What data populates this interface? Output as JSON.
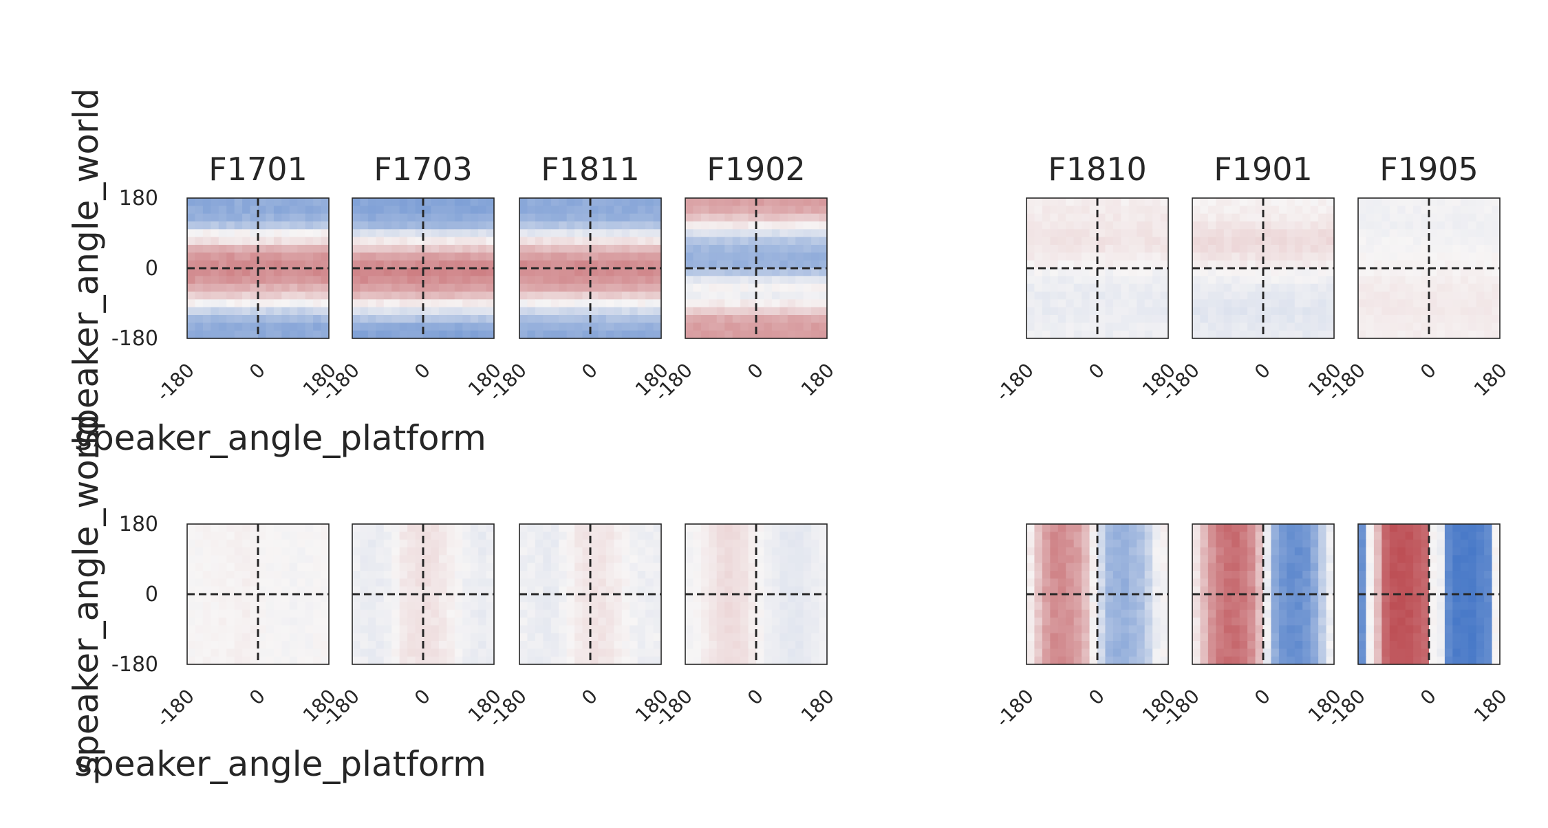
{
  "chart_data": {
    "type": "heatmap",
    "x_label": "speaker_angle_platform",
    "y_label": "speaker_angle_world",
    "x_ticks": [
      "-180",
      "0",
      "180"
    ],
    "y_ticks": [
      "180",
      "0",
      "-180"
    ],
    "x_range": [
      -180,
      180
    ],
    "y_range": [
      -180,
      180
    ],
    "grid": false,
    "reference_lines": {
      "x": 0,
      "y": 0,
      "style": "dashed"
    },
    "colormap": "diverging blue-white-red",
    "colors": {
      "negative": "#3a6fc4",
      "neutral": "#f7f5f5",
      "positive": "#b5383f"
    },
    "value_range": [
      -1,
      1
    ],
    "groups": [
      {
        "panels": [
          "F1701",
          "F1703",
          "F1811",
          "F1902"
        ]
      },
      {
        "panels": [
          "F1810",
          "F1901",
          "F1905"
        ]
      }
    ],
    "rows": [
      {
        "orientation": "horizontal",
        "panels": [
          {
            "title": "F1701",
            "profile": [
              -0.55,
              -0.55,
              -0.5,
              -0.35,
              0.0,
              0.1,
              0.35,
              0.5,
              0.55,
              0.55,
              0.5,
              0.35,
              0.2,
              0.0,
              -0.25,
              -0.45,
              -0.55,
              -0.55
            ],
            "noise": 0.05
          },
          {
            "title": "F1703",
            "profile": [
              -0.6,
              -0.6,
              -0.55,
              -0.45,
              -0.15,
              0.05,
              0.25,
              0.45,
              0.55,
              0.6,
              0.55,
              0.45,
              0.3,
              0.05,
              -0.15,
              -0.35,
              -0.55,
              -0.6
            ],
            "noise": 0.04
          },
          {
            "title": "F1811",
            "profile": [
              -0.55,
              -0.55,
              -0.5,
              -0.35,
              -0.1,
              0.1,
              0.3,
              0.45,
              0.55,
              0.55,
              0.5,
              0.4,
              0.2,
              0.0,
              -0.2,
              -0.4,
              -0.5,
              -0.55
            ],
            "noise": 0.04
          },
          {
            "title": "F1902",
            "profile": [
              0.45,
              0.4,
              0.25,
              0.05,
              -0.15,
              -0.35,
              -0.45,
              -0.5,
              -0.5,
              -0.35,
              -0.1,
              0.0,
              -0.05,
              0.05,
              0.2,
              0.4,
              0.45,
              0.45
            ],
            "noise": 0.04
          },
          {
            "title": "F1810",
            "profile": [
              0.04,
              0.05,
              0.06,
              0.07,
              0.08,
              0.09,
              0.08,
              0.05,
              0.02,
              -0.02,
              -0.05,
              -0.06,
              -0.07,
              -0.06,
              -0.07,
              -0.06,
              -0.05,
              -0.05
            ],
            "noise": 0.03
          },
          {
            "title": "F1901",
            "profile": [
              0.02,
              0.03,
              0.05,
              0.08,
              0.12,
              0.14,
              0.13,
              0.09,
              0.04,
              -0.01,
              -0.04,
              -0.07,
              -0.09,
              -0.1,
              -0.11,
              -0.1,
              -0.09,
              -0.08
            ],
            "noise": 0.03
          },
          {
            "title": "F1905",
            "profile": [
              -0.03,
              -0.03,
              -0.04,
              -0.04,
              -0.03,
              -0.02,
              -0.01,
              0.0,
              0.01,
              0.02,
              0.04,
              0.05,
              0.06,
              0.06,
              0.06,
              0.05,
              0.05,
              0.04
            ],
            "noise": 0.02
          }
        ]
      },
      {
        "orientation": "vertical",
        "panels": [
          {
            "profile": [
              0.0,
              0.0,
              0.01,
              0.01,
              0.02,
              0.02,
              0.03,
              0.03,
              0.02,
              0.0,
              -0.01,
              -0.01,
              -0.01,
              -0.02,
              -0.01,
              -0.01,
              0.0,
              0.0
            ],
            "noise": 0.02
          },
          {
            "profile": [
              -0.05,
              -0.06,
              -0.07,
              -0.06,
              -0.04,
              0.0,
              0.06,
              0.09,
              0.1,
              0.1,
              0.09,
              0.06,
              0.03,
              -0.01,
              -0.04,
              -0.06,
              -0.07,
              -0.05
            ],
            "noise": 0.03
          },
          {
            "profile": [
              -0.04,
              -0.05,
              -0.06,
              -0.07,
              -0.06,
              -0.03,
              0.02,
              0.06,
              0.08,
              0.09,
              0.09,
              0.07,
              0.04,
              0.0,
              -0.03,
              -0.05,
              -0.05,
              -0.04
            ],
            "noise": 0.03
          },
          {
            "profile": [
              -0.02,
              0.0,
              0.04,
              0.08,
              0.12,
              0.14,
              0.13,
              0.1,
              0.05,
              0.0,
              -0.04,
              -0.07,
              -0.09,
              -0.1,
              -0.1,
              -0.08,
              -0.06,
              -0.04
            ],
            "noise": 0.02
          },
          {
            "profile": [
              0.05,
              0.25,
              0.45,
              0.55,
              0.55,
              0.5,
              0.45,
              0.3,
              0.0,
              -0.2,
              -0.45,
              -0.5,
              -0.5,
              -0.45,
              -0.4,
              -0.25,
              -0.05,
              0.0
            ],
            "noise": 0.05
          },
          {
            "profile": [
              0.1,
              0.3,
              0.5,
              0.65,
              0.7,
              0.7,
              0.65,
              0.55,
              0.3,
              -0.05,
              -0.55,
              -0.7,
              -0.75,
              -0.75,
              -0.7,
              -0.55,
              -0.3,
              -0.05
            ],
            "noise": 0.05
          },
          {
            "profile": [
              -0.75,
              0.0,
              0.3,
              0.75,
              0.85,
              0.85,
              0.85,
              0.8,
              0.75,
              0.0,
              -0.05,
              -0.8,
              -0.9,
              -0.9,
              -0.9,
              -0.85,
              -0.8,
              0.0
            ],
            "noise": 0.03
          }
        ]
      }
    ]
  }
}
